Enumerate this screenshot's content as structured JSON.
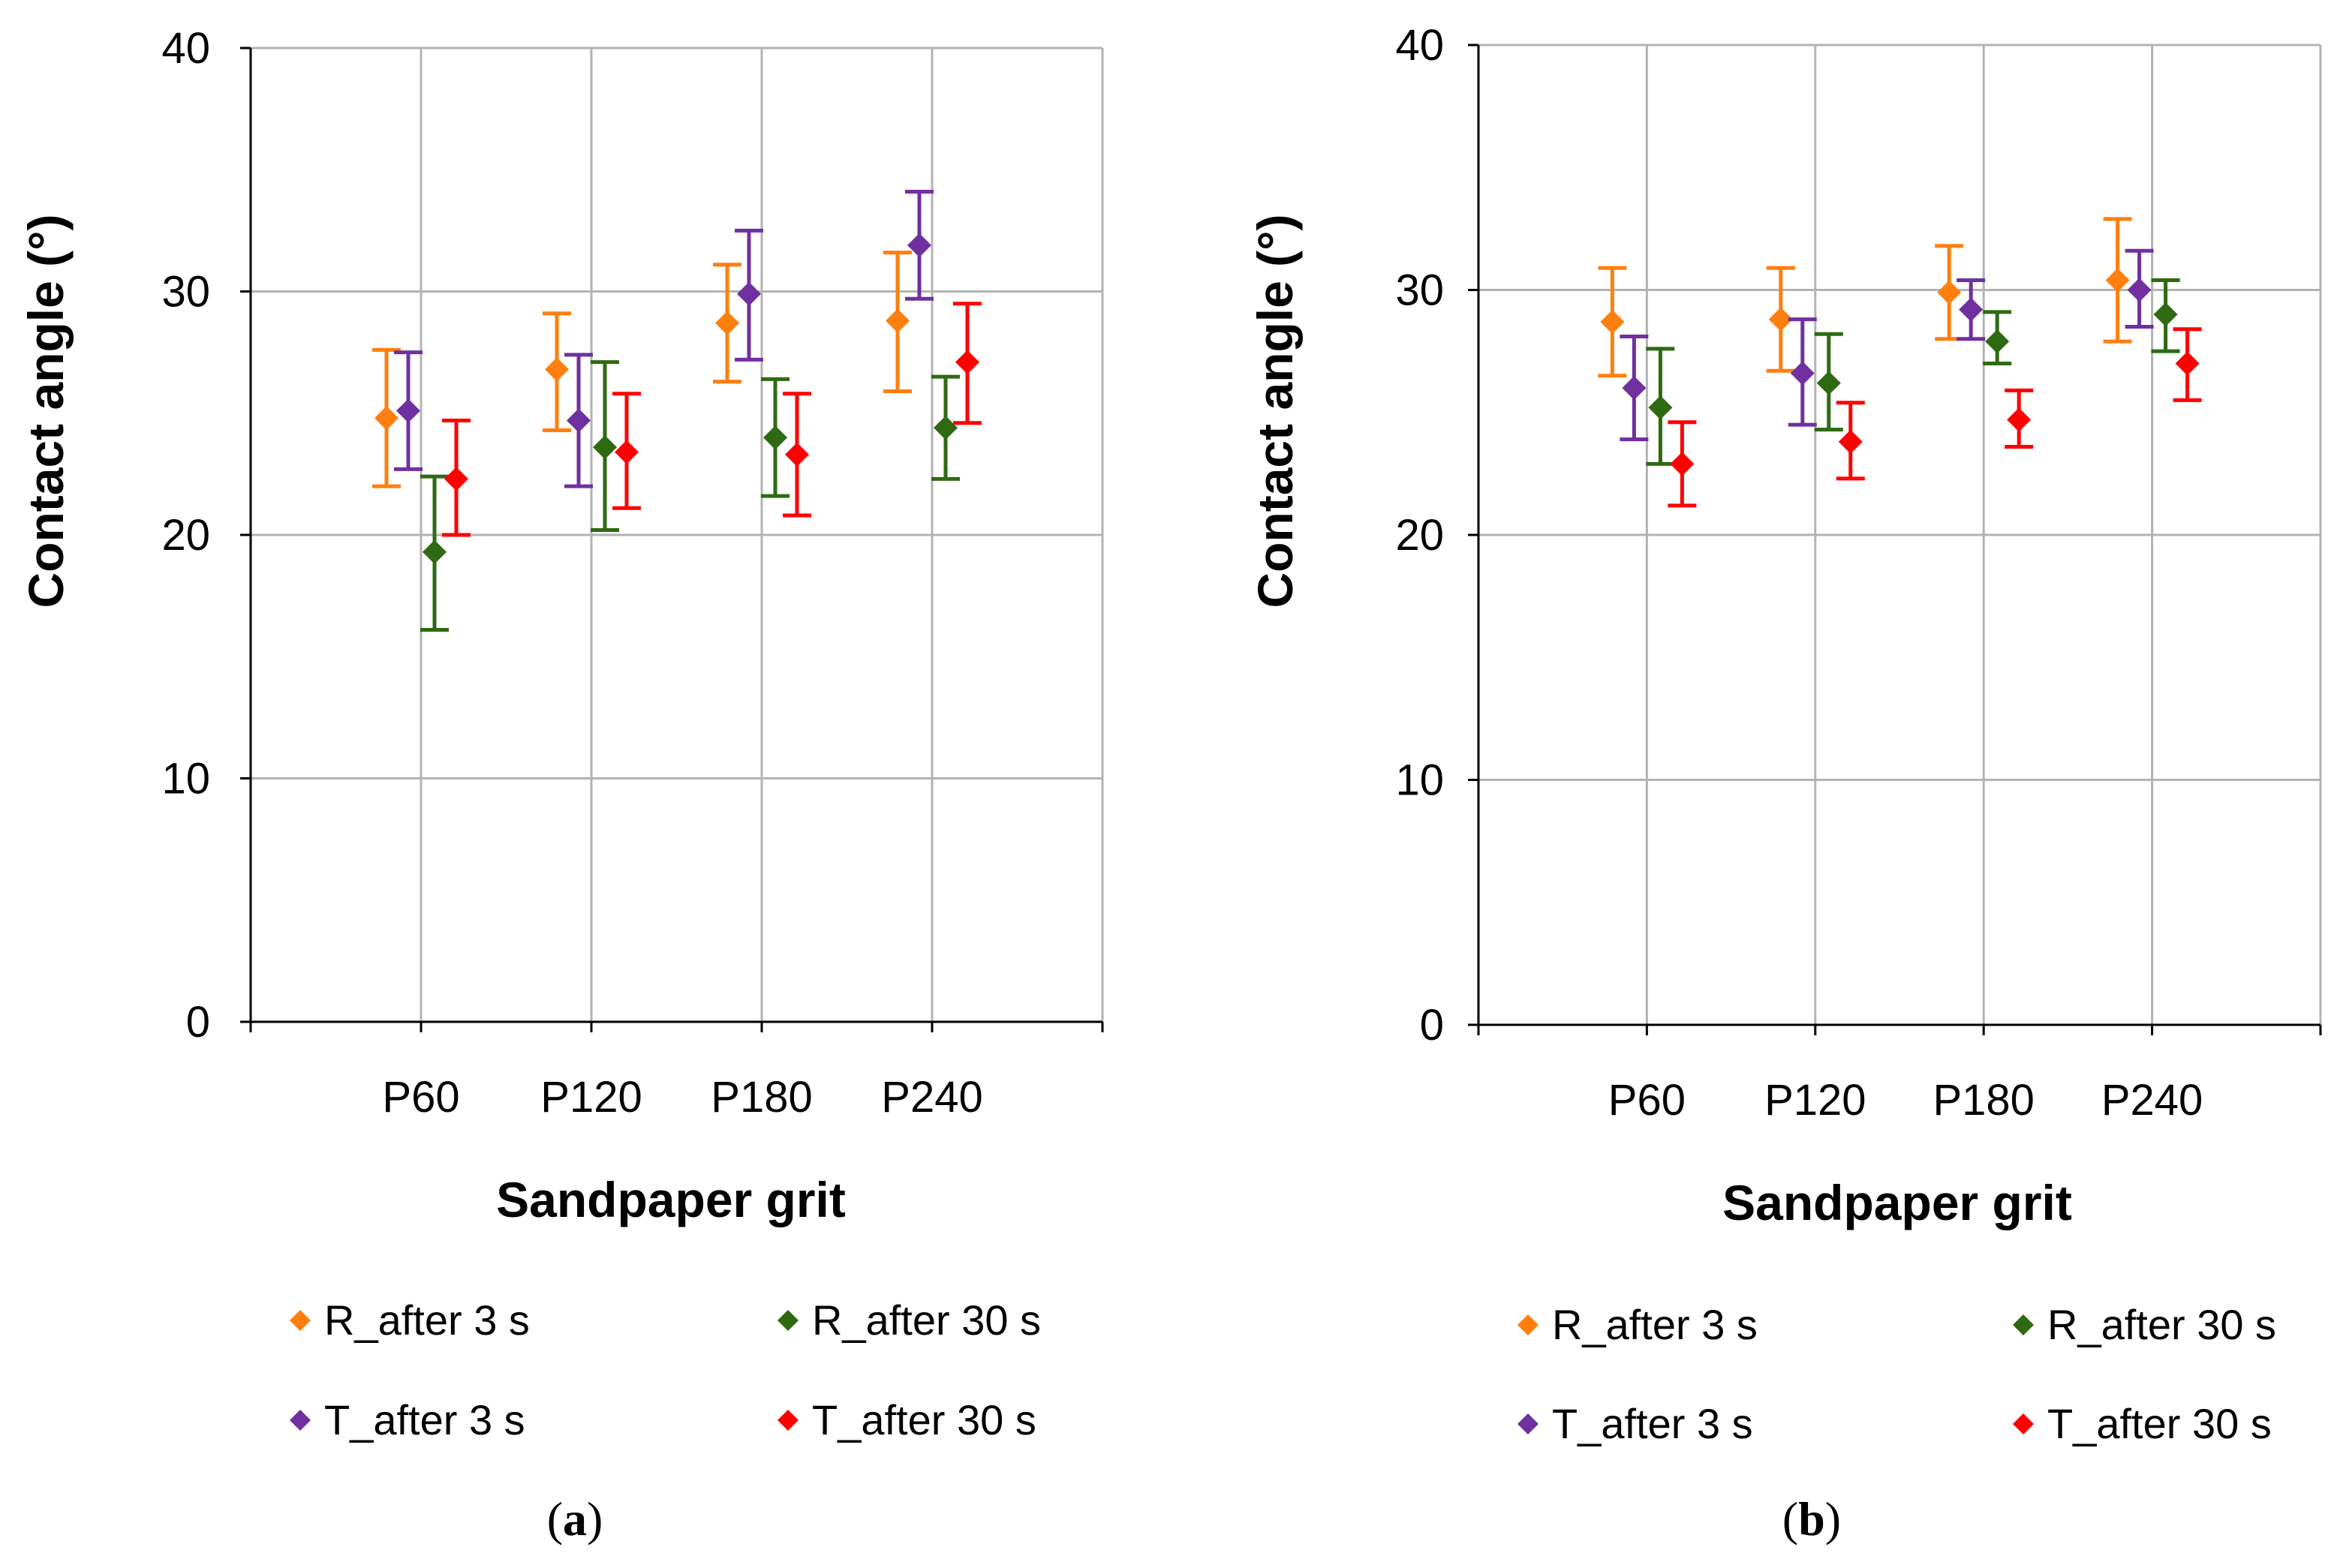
{
  "chart_data": [
    {
      "panel": "a",
      "type": "scatter",
      "xlabel": "Sandpaper grit",
      "ylabel": "Contact angle (°)",
      "categories": [
        "P60",
        "P120",
        "P180",
        "P240"
      ],
      "ylim": [
        0,
        40
      ],
      "yticks": [
        "0",
        "10",
        "20",
        "30",
        "40"
      ],
      "grid": true,
      "legend_position": "bottom",
      "series": [
        {
          "name": "R_after 3 s",
          "color": "#ff7f0e",
          "values": [
            24.8,
            26.8,
            28.7,
            28.8
          ],
          "err_low": [
            22.0,
            24.3,
            26.3,
            25.9
          ],
          "err_high": [
            27.6,
            29.1,
            31.1,
            31.6
          ]
        },
        {
          "name": "T_after 3 s",
          "color": "#7030a0",
          "values": [
            25.1,
            24.7,
            29.9,
            31.9
          ],
          "err_low": [
            22.7,
            22.0,
            27.2,
            29.7
          ],
          "err_high": [
            27.5,
            27.4,
            32.5,
            34.1
          ]
        },
        {
          "name": "R_after 30 s",
          "color": "#2e6a12",
          "values": [
            19.3,
            23.6,
            24.0,
            24.4
          ],
          "err_low": [
            16.1,
            20.2,
            21.6,
            22.3
          ],
          "err_high": [
            22.4,
            27.1,
            26.4,
            26.5
          ]
        },
        {
          "name": "T_after 30 s",
          "color": "#ff0000",
          "values": [
            22.3,
            23.4,
            23.3,
            27.1
          ],
          "err_low": [
            20.0,
            21.1,
            20.8,
            24.6
          ],
          "err_high": [
            24.7,
            25.8,
            25.8,
            29.5
          ]
        }
      ]
    },
    {
      "panel": "b",
      "type": "scatter",
      "xlabel": "Sandpaper grit",
      "ylabel": "Contact angle (°)",
      "categories": [
        "P60",
        "P120",
        "P180",
        "P240"
      ],
      "ylim": [
        0,
        40
      ],
      "yticks": [
        "0",
        "10",
        "20",
        "30",
        "40"
      ],
      "grid": true,
      "legend_position": "bottom",
      "series": [
        {
          "name": "R_after 3 s",
          "color": "#ff7f0e",
          "values": [
            28.7,
            28.8,
            29.9,
            30.4
          ],
          "err_low": [
            26.5,
            26.7,
            28.0,
            27.9
          ],
          "err_high": [
            30.9,
            30.9,
            31.8,
            32.9
          ]
        },
        {
          "name": "T_after 3 s",
          "color": "#7030a0",
          "values": [
            26.0,
            26.6,
            29.2,
            30.0
          ],
          "err_low": [
            23.9,
            24.5,
            28.0,
            28.5
          ],
          "err_high": [
            28.1,
            28.8,
            30.4,
            31.6
          ]
        },
        {
          "name": "R_after 30 s",
          "color": "#2e6a12",
          "values": [
            25.2,
            26.2,
            27.9,
            29.0
          ],
          "err_low": [
            22.9,
            24.3,
            27.0,
            27.5
          ],
          "err_high": [
            27.6,
            28.2,
            29.1,
            30.4
          ]
        },
        {
          "name": "T_after 30 s",
          "color": "#ff0000",
          "values": [
            22.9,
            23.8,
            24.7,
            27.0
          ],
          "err_low": [
            21.2,
            22.3,
            23.6,
            25.5
          ],
          "err_high": [
            24.6,
            25.4,
            25.9,
            28.4
          ]
        }
      ]
    }
  ],
  "legend_items": [
    {
      "label": "R_after 3 s",
      "color": "#ff7f0e"
    },
    {
      "label": "R_after 30 s",
      "color": "#2e6a12"
    },
    {
      "label": "T_after 3 s",
      "color": "#7030a0"
    },
    {
      "label": "T_after 30 s",
      "color": "#ff0000"
    }
  ],
  "panel_labels": [
    {
      "open": "(",
      "letter": "a",
      "close": ")"
    },
    {
      "open": "(",
      "letter": "b",
      "close": ")"
    }
  ]
}
